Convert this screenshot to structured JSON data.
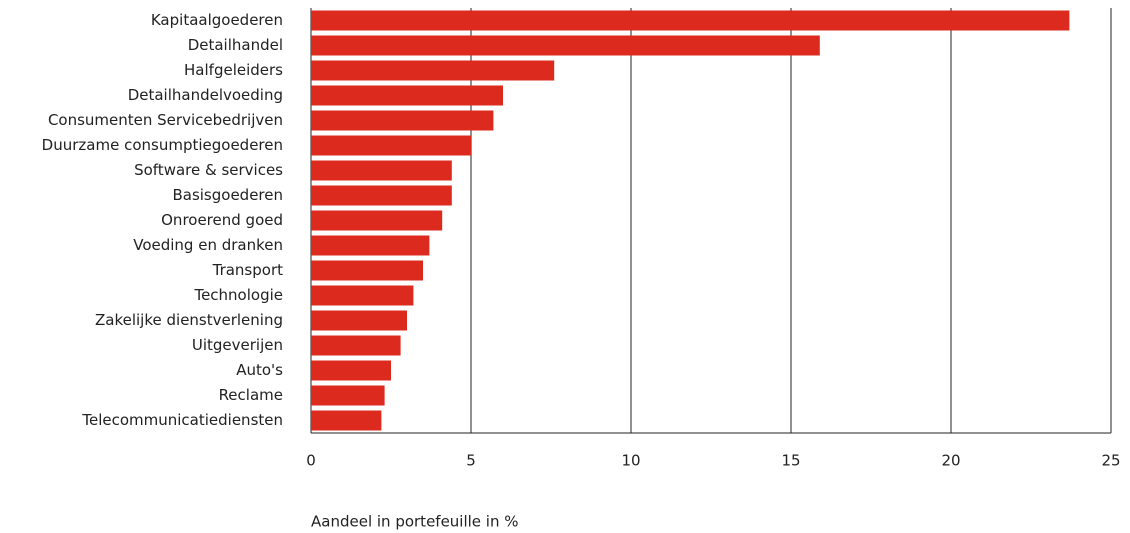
{
  "chart_data": {
    "type": "bar",
    "orientation": "horizontal",
    "x_label": "Aandeel in portefeuille in %",
    "categories": [
      "Kapitaalgoederen",
      "Detailhandel",
      "Halfgeleiders",
      "Detailhandelvoeding",
      "Consumenten Servicebedrijven",
      "Duurzame consumptiegoederen",
      "Software & services",
      "Basisgoederen",
      "Onroerend goed",
      "Voeding en dranken",
      "Transport",
      "Technologie",
      "Zakelijke dienstverlening",
      "Uitgeverijen",
      "Auto's",
      "Reclame",
      "Telecommunicatiediensten"
    ],
    "values": [
      23.7,
      15.9,
      7.6,
      6.0,
      5.7,
      5.0,
      4.4,
      4.4,
      4.1,
      3.7,
      3.5,
      3.2,
      3.0,
      2.8,
      2.5,
      2.3,
      2.2
    ],
    "color": "#dc2a1e",
    "xlim": [
      0,
      25
    ],
    "xticks": [
      0,
      5,
      10,
      15,
      20,
      25
    ],
    "grid": true
  }
}
